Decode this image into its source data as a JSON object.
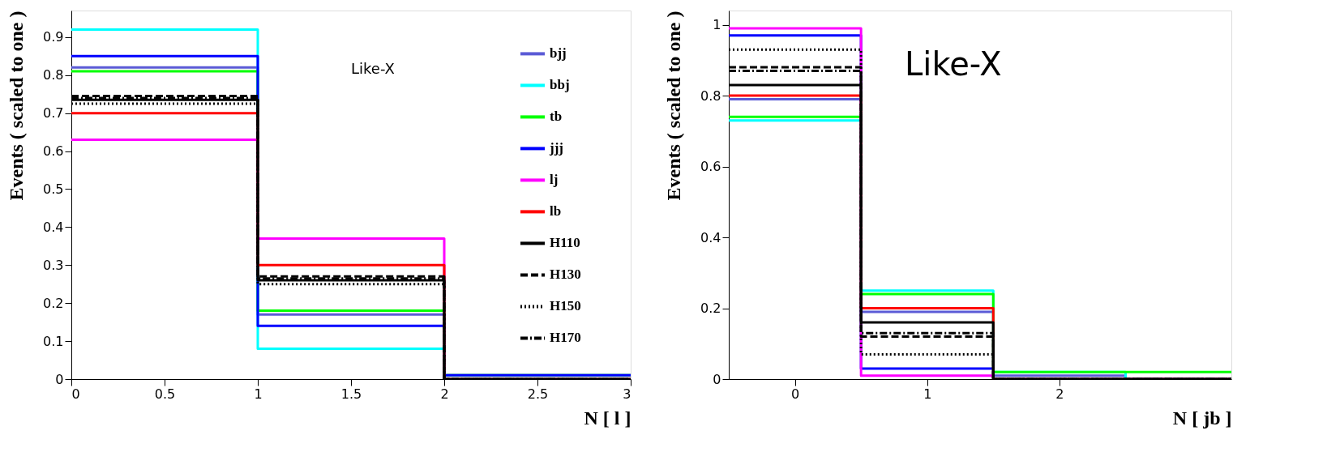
{
  "chart_data": [
    {
      "type": "histogram",
      "xlabel": "N [ l ]",
      "ylabel": "Events  ( scaled to one )",
      "annotations": [
        "Like-X"
      ],
      "bins": [
        0,
        1,
        2,
        3
      ],
      "xlim": [
        0,
        3
      ],
      "ylim": [
        0,
        0.97
      ],
      "xticks": [
        0,
        0.5,
        1,
        1.5,
        2,
        2.5,
        3
      ],
      "yticks": [
        0,
        0.1,
        0.2,
        0.3,
        0.4,
        0.5,
        0.6,
        0.7,
        0.8,
        0.9
      ],
      "grid": false,
      "legend": "top right",
      "series": [
        {
          "name": "bjj",
          "color": "#5b5bd6",
          "values": [
            0.82,
            0.17,
            0.01
          ]
        },
        {
          "name": "bbj",
          "color": "#00ffff",
          "values": [
            0.92,
            0.08,
            0
          ]
        },
        {
          "name": "tb",
          "color": "#00ff00",
          "values": [
            0.81,
            0.18,
            0.01
          ]
        },
        {
          "name": "jjj",
          "color": "#0000ff",
          "values": [
            0.85,
            0.14,
            0.01
          ]
        },
        {
          "name": "lj",
          "color": "#ff00ff",
          "values": [
            0.63,
            0.37,
            0
          ]
        },
        {
          "name": "lb",
          "color": "#ff0000",
          "values": [
            0.7,
            0.3,
            0
          ]
        },
        {
          "name": "H110",
          "color": "#000000",
          "line_style": "solid",
          "values": [
            0.735,
            0.26,
            0
          ]
        },
        {
          "name": "H130",
          "color": "#010101",
          "line_style": "dashed",
          "values": [
            0.745,
            0.27,
            0
          ]
        },
        {
          "name": "H150",
          "color": "#020202",
          "line_style": "dotted",
          "values": [
            0.725,
            0.25,
            0
          ]
        },
        {
          "name": "H170",
          "color": "#030303",
          "line_style": "dashdot",
          "values": [
            0.74,
            0.265,
            0
          ]
        }
      ]
    },
    {
      "type": "histogram",
      "xlabel": "N [ jb ]",
      "ylabel": "Events  ( scaled to one )",
      "annotations": [
        "Like-X"
      ],
      "bins": [
        -0.5,
        0.5,
        1.5,
        2.5,
        3.3
      ],
      "xlim": [
        -0.5,
        3.3
      ],
      "ylim": [
        0,
        1.04
      ],
      "xticks": [
        0,
        1,
        2
      ],
      "yticks": [
        0,
        0.2,
        0.4,
        0.6,
        0.8,
        1
      ],
      "grid": false,
      "legend": false,
      "series": [
        {
          "color": "#5b5bd6",
          "values": [
            0.79,
            0.19,
            0.01,
            0
          ]
        },
        {
          "color": "#00ffff",
          "values": [
            0.73,
            0.25,
            0.02,
            0
          ]
        },
        {
          "color": "#00ff00",
          "values": [
            0.74,
            0.24,
            0.02,
            0.02
          ]
        },
        {
          "color": "#0000ff",
          "values": [
            0.97,
            0.03,
            0,
            0
          ]
        },
        {
          "color": "#ff00ff",
          "values": [
            0.99,
            0.01,
            0,
            0
          ]
        },
        {
          "color": "#ff0000",
          "values": [
            0.8,
            0.2,
            0,
            0
          ]
        },
        {
          "color": "#000000",
          "line_style": "solid",
          "values": [
            0.83,
            0.16,
            0,
            0
          ]
        },
        {
          "color": "#010101",
          "line_style": "dashed",
          "values": [
            0.88,
            0.12,
            0,
            0
          ]
        },
        {
          "color": "#020202",
          "line_style": "dotted",
          "values": [
            0.93,
            0.07,
            0,
            0
          ]
        },
        {
          "color": "#030303",
          "line_style": "dashdot",
          "values": [
            0.87,
            0.13,
            0,
            0
          ]
        }
      ]
    }
  ]
}
